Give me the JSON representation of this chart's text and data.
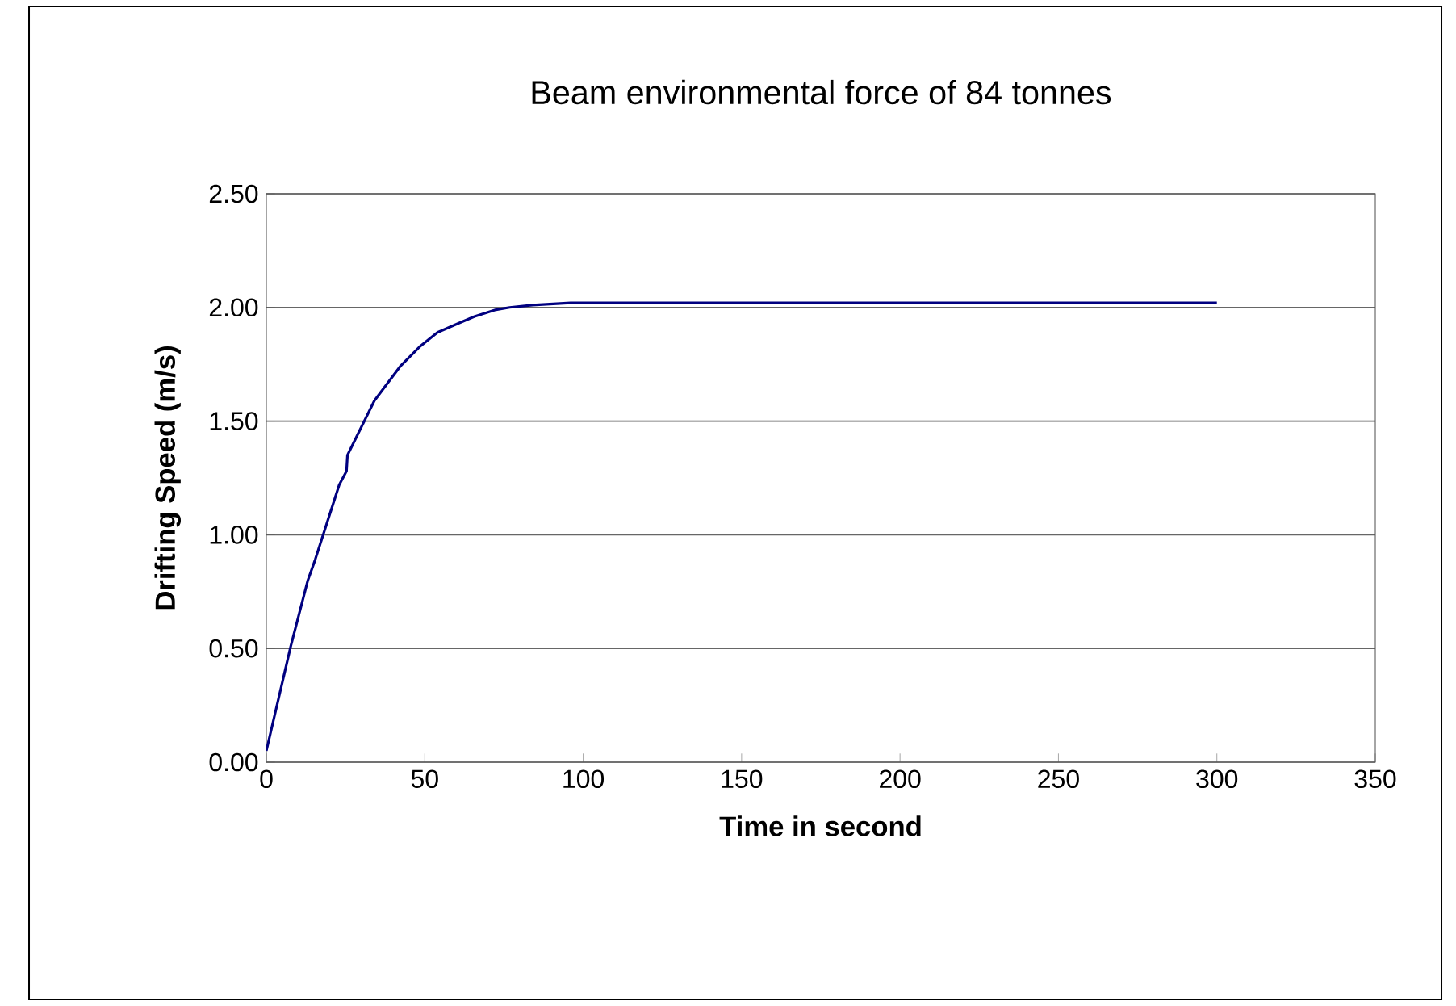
{
  "chart_data": {
    "type": "line",
    "title": "Beam environmental force of 84 tonnes",
    "xlabel": "Time in second",
    "ylabel": "Drifting Speed (m/s)",
    "x": [
      0,
      7.7,
      13.1,
      15.4,
      23,
      25.3,
      25.6,
      34.1,
      42.2,
      48.6,
      54,
      60.6,
      65.7,
      72.5,
      76.8,
      84,
      96,
      300
    ],
    "series": [
      {
        "color": "#000080",
        "values": [
          0.05,
          0.51,
          0.8,
          0.89,
          1.22,
          1.28,
          1.35,
          1.59,
          1.74,
          1.83,
          1.89,
          1.93,
          1.96,
          1.99,
          2.0,
          2.01,
          2.02,
          2.02
        ]
      }
    ],
    "xlim": [
      0,
      350
    ],
    "xticks": [
      0,
      50,
      100,
      150,
      200,
      250,
      300,
      350
    ],
    "ylim": [
      0,
      2.5
    ],
    "yticks": [
      {
        "value": 0,
        "label": "0.00"
      },
      {
        "value": 0.5,
        "label": "0.50"
      },
      {
        "value": 1,
        "label": "1.00"
      },
      {
        "value": 1.5,
        "label": "1.50"
      },
      {
        "value": 2,
        "label": "2.00"
      },
      {
        "value": 2.5,
        "label": "2.50"
      }
    ],
    "grid": "y",
    "marker": "none",
    "line_style": "solid"
  }
}
